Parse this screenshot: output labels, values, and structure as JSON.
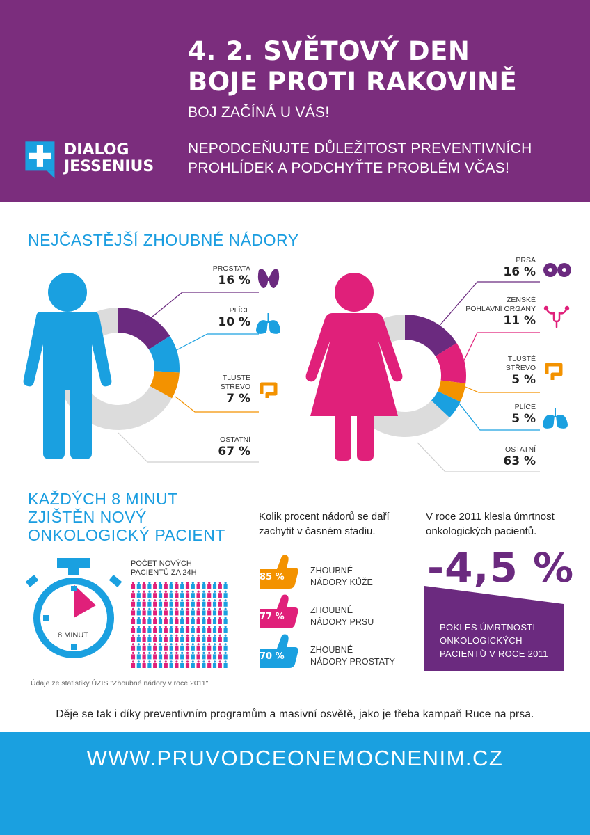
{
  "header": {
    "title_line1": "4. 2. SVĚTOVÝ DEN",
    "title_line2": "BOJE PROTI RAKOVINĚ",
    "subtitle": "BOJ ZAČÍNÁ U VÁS!",
    "message_line1": "NEPODCEŇUJTE DŮLEŽITOST PREVENTIVNÍCH",
    "message_line2": "PROHLÍDEK A PODCHYŤTE PROBLÉM VČAS!",
    "logo_line1": "DIALOG",
    "logo_line2": "JESSENIUS",
    "logo_icon": "plus-speech-bubble-icon"
  },
  "colors": {
    "purple": "#7b2d7d",
    "blue": "#1aa0e0",
    "pink": "#e0207a",
    "orange": "#f39200",
    "gray": "#dcdcdc",
    "dark_purple": "#6b2a7f"
  },
  "section1": {
    "title": "NEJČASTĚJŠÍ ZHOUBNÉ NÁDORY"
  },
  "chart_data": [
    {
      "type": "pie",
      "labels": [
        "PROSTATA",
        "PLÍCE",
        "TLUSTÉ STŘEVO",
        "OSTATNÍ"
      ],
      "values": [
        16,
        10,
        7,
        67
      ],
      "display": [
        "16 %",
        "10 %",
        "7 %",
        "67 %"
      ],
      "colors": [
        "#6b2a7f",
        "#1aa0e0",
        "#f39200",
        "#dcdcdc"
      ],
      "icons": [
        "prostate-icon",
        "lungs-icon",
        "intestine-icon",
        null
      ]
    },
    {
      "type": "pie",
      "labels": [
        "PRSA",
        "ŽENSKÉ POHLAVNÍ ORGÁNY",
        "TLUSTÉ STŘEVO",
        "PLÍCE",
        "OSTATNÍ"
      ],
      "values": [
        16,
        11,
        5,
        5,
        63
      ],
      "display": [
        "16 %",
        "11 %",
        "5 %",
        "5 %",
        "63 %"
      ],
      "colors": [
        "#6b2a7f",
        "#e0207a",
        "#f39200",
        "#1aa0e0",
        "#dcdcdc"
      ],
      "icons": [
        "breast-icon",
        "uterus-icon",
        "intestine-icon",
        "lungs-icon",
        null
      ]
    }
  ],
  "men": {
    "prostata": {
      "l1": "PROSTATA",
      "pct": "16 %"
    },
    "plice": {
      "l1": "PLÍCE",
      "pct": "10 %"
    },
    "streve": {
      "l1": "TLUSTÉ",
      "l2": "STŘEVO",
      "pct": "7 %"
    },
    "ostatni": {
      "l1": "OSTATNÍ",
      "pct": "67 %"
    }
  },
  "women": {
    "prsa": {
      "l1": "PRSA",
      "pct": "16 %"
    },
    "zenske": {
      "l1": "ŽENSKÉ",
      "l2": "POHLAVNÍ ORGÁNY",
      "pct": "11 %"
    },
    "streve": {
      "l1": "TLUSTÉ",
      "l2": "STŘEVO",
      "pct": "5 %"
    },
    "plice": {
      "l1": "PLÍCE",
      "pct": "5 %"
    },
    "ostatni": {
      "l1": "OSTATNÍ",
      "pct": "63 %"
    }
  },
  "section2": {
    "title_line1": "KAŽDÝCH 8 MINUT",
    "title_line2": "ZJIŠTĚN NOVÝ",
    "title_line3": "ONKOLOGICKÝ PACIENT",
    "timer_label": "8 MINUT",
    "people_label_line1": "POČET NOVÝCH",
    "people_label_line2": "PACIENTŮ ZA 24H",
    "people_count": 180,
    "source": "Údaje ze statistiky ÚZIS \"Zhoubné nádory v roce 2011\""
  },
  "early_detection": {
    "question_line1": "Kolik procent nádorů se daří",
    "question_line2": "zachytit v časném stadiu.",
    "items": [
      {
        "pct": "85 %",
        "l1": "ZHOUBNÉ",
        "l2": "NÁDORY KŮŽE",
        "color": "#f39200"
      },
      {
        "pct": "77 %",
        "l1": "ZHOUBNÉ",
        "l2": "NÁDORY PRSU",
        "color": "#e0207a"
      },
      {
        "pct": "70 %",
        "l1": "ZHOUBNÉ",
        "l2": "NÁDORY PROSTATY",
        "color": "#1aa0e0"
      }
    ]
  },
  "mortality": {
    "text_line1": "V roce 2011 klesla úmrtnost",
    "text_line2": "onkologických pacientů.",
    "value": "-4,5 %",
    "box_line1": "POKLES ÚMRTNOSTI",
    "box_line2": "ONKOLOGICKÝCH",
    "box_line3": "PACIENTŮ V ROCE 2011"
  },
  "footnote": "Děje se tak i díky preventivním programům a masivní osvětě, jako je třeba kampaň Ruce na prsa.",
  "footer": {
    "url": "WWW.PRUVODCEONEMOCNENIM.CZ"
  }
}
